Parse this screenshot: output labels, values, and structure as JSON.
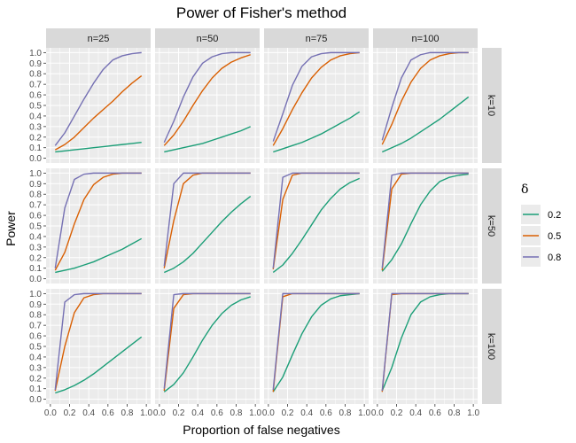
{
  "chart_data": {
    "type": "line",
    "title": "Power of Fisher's method",
    "xlabel": "Proportion of false negatives",
    "ylabel": "Power",
    "xlim": [
      0,
      1
    ],
    "ylim": [
      0,
      1
    ],
    "x_ticks": [
      "0.0",
      "0.2",
      "0.4",
      "0.6",
      "0.8",
      "1.0"
    ],
    "y_ticks": [
      "0.0",
      "0.1",
      "0.2",
      "0.3",
      "0.4",
      "0.5",
      "0.6",
      "0.7",
      "0.8",
      "0.9",
      "1.0"
    ],
    "grid": true,
    "facet_cols": [
      "n=25",
      "n=50",
      "n=75",
      "n=100"
    ],
    "facet_rows": [
      "k=10",
      "k=50",
      "k=100"
    ],
    "legend": {
      "title": "δ",
      "position": "right",
      "entries": [
        {
          "label": "0.2",
          "color": "#1b9e77"
        },
        {
          "label": "0.5",
          "color": "#d95f02"
        },
        {
          "label": "0.8",
          "color": "#7570b3"
        }
      ]
    },
    "x": [
      0.05,
      0.15,
      0.25,
      0.35,
      0.45,
      0.55,
      0.65,
      0.75,
      0.85,
      0.95
    ],
    "panels": [
      {
        "col": "n=25",
        "row": "k=10",
        "series": [
          {
            "name": "0.2",
            "values": [
              0.06,
              0.07,
              0.08,
              0.09,
              0.1,
              0.11,
              0.12,
              0.13,
              0.14,
              0.15
            ]
          },
          {
            "name": "0.5",
            "values": [
              0.08,
              0.13,
              0.2,
              0.29,
              0.38,
              0.46,
              0.54,
              0.63,
              0.71,
              0.78
            ]
          },
          {
            "name": "0.8",
            "values": [
              0.12,
              0.24,
              0.4,
              0.56,
              0.71,
              0.84,
              0.93,
              0.97,
              0.99,
              1.0
            ]
          }
        ]
      },
      {
        "col": "n=50",
        "row": "k=10",
        "series": [
          {
            "name": "0.2",
            "values": [
              0.06,
              0.08,
              0.1,
              0.12,
              0.14,
              0.17,
              0.2,
              0.23,
              0.26,
              0.3
            ]
          },
          {
            "name": "0.5",
            "values": [
              0.12,
              0.22,
              0.35,
              0.5,
              0.64,
              0.76,
              0.85,
              0.91,
              0.95,
              0.98
            ]
          },
          {
            "name": "0.8",
            "values": [
              0.15,
              0.35,
              0.58,
              0.77,
              0.9,
              0.96,
              0.99,
              1.0,
              1.0,
              1.0
            ]
          }
        ]
      },
      {
        "col": "n=75",
        "row": "k=10",
        "series": [
          {
            "name": "0.2",
            "values": [
              0.06,
              0.09,
              0.12,
              0.15,
              0.19,
              0.23,
              0.28,
              0.33,
              0.38,
              0.44
            ]
          },
          {
            "name": "0.5",
            "values": [
              0.12,
              0.28,
              0.46,
              0.62,
              0.76,
              0.86,
              0.93,
              0.97,
              0.99,
              1.0
            ]
          },
          {
            "name": "0.8",
            "values": [
              0.16,
              0.42,
              0.69,
              0.87,
              0.96,
              0.99,
              1.0,
              1.0,
              1.0,
              1.0
            ]
          }
        ]
      },
      {
        "col": "n=100",
        "row": "k=10",
        "series": [
          {
            "name": "0.2",
            "values": [
              0.06,
              0.1,
              0.14,
              0.19,
              0.25,
              0.31,
              0.37,
              0.44,
              0.51,
              0.58
            ]
          },
          {
            "name": "0.5",
            "values": [
              0.13,
              0.32,
              0.54,
              0.72,
              0.85,
              0.93,
              0.97,
              0.99,
              1.0,
              1.0
            ]
          },
          {
            "name": "0.8",
            "values": [
              0.17,
              0.48,
              0.76,
              0.93,
              0.98,
              1.0,
              1.0,
              1.0,
              1.0,
              1.0
            ]
          }
        ]
      },
      {
        "col": "n=25",
        "row": "k=50",
        "series": [
          {
            "name": "0.2",
            "values": [
              0.06,
              0.08,
              0.1,
              0.13,
              0.16,
              0.2,
              0.24,
              0.28,
              0.33,
              0.38
            ]
          },
          {
            "name": "0.5",
            "values": [
              0.08,
              0.25,
              0.52,
              0.75,
              0.89,
              0.96,
              0.99,
              1.0,
              1.0,
              1.0
            ]
          },
          {
            "name": "0.8",
            "values": [
              0.1,
              0.67,
              0.94,
              0.99,
              1.0,
              1.0,
              1.0,
              1.0,
              1.0,
              1.0
            ]
          }
        ]
      },
      {
        "col": "n=50",
        "row": "k=50",
        "series": [
          {
            "name": "0.2",
            "values": [
              0.06,
              0.1,
              0.16,
              0.24,
              0.34,
              0.44,
              0.54,
              0.63,
              0.71,
              0.78
            ]
          },
          {
            "name": "0.5",
            "values": [
              0.1,
              0.55,
              0.9,
              0.98,
              1.0,
              1.0,
              1.0,
              1.0,
              1.0,
              1.0
            ]
          },
          {
            "name": "0.8",
            "values": [
              0.12,
              0.9,
              1.0,
              1.0,
              1.0,
              1.0,
              1.0,
              1.0,
              1.0,
              1.0
            ]
          }
        ]
      },
      {
        "col": "n=75",
        "row": "k=50",
        "series": [
          {
            "name": "0.2",
            "values": [
              0.06,
              0.13,
              0.24,
              0.37,
              0.51,
              0.65,
              0.76,
              0.85,
              0.91,
              0.95
            ]
          },
          {
            "name": "0.5",
            "values": [
              0.09,
              0.75,
              0.98,
              1.0,
              1.0,
              1.0,
              1.0,
              1.0,
              1.0,
              1.0
            ]
          },
          {
            "name": "0.8",
            "values": [
              0.1,
              0.96,
              1.0,
              1.0,
              1.0,
              1.0,
              1.0,
              1.0,
              1.0,
              1.0
            ]
          }
        ]
      },
      {
        "col": "n=100",
        "row": "k=50",
        "series": [
          {
            "name": "0.2",
            "values": [
              0.07,
              0.18,
              0.33,
              0.52,
              0.7,
              0.83,
              0.92,
              0.96,
              0.98,
              0.99
            ]
          },
          {
            "name": "0.5",
            "values": [
              0.08,
              0.85,
              0.99,
              1.0,
              1.0,
              1.0,
              1.0,
              1.0,
              1.0,
              1.0
            ]
          },
          {
            "name": "0.8",
            "values": [
              0.1,
              0.98,
              1.0,
              1.0,
              1.0,
              1.0,
              1.0,
              1.0,
              1.0,
              1.0
            ]
          }
        ]
      },
      {
        "col": "n=25",
        "row": "k=100",
        "series": [
          {
            "name": "0.2",
            "values": [
              0.06,
              0.09,
              0.13,
              0.18,
              0.24,
              0.31,
              0.38,
              0.45,
              0.52,
              0.59
            ]
          },
          {
            "name": "0.5",
            "values": [
              0.08,
              0.5,
              0.82,
              0.96,
              0.99,
              1.0,
              1.0,
              1.0,
              1.0,
              1.0
            ]
          },
          {
            "name": "0.8",
            "values": [
              0.09,
              0.92,
              0.99,
              1.0,
              1.0,
              1.0,
              1.0,
              1.0,
              1.0,
              1.0
            ]
          }
        ]
      },
      {
        "col": "n=50",
        "row": "k=100",
        "series": [
          {
            "name": "0.2",
            "values": [
              0.07,
              0.14,
              0.25,
              0.4,
              0.56,
              0.7,
              0.81,
              0.89,
              0.94,
              0.97
            ]
          },
          {
            "name": "0.5",
            "values": [
              0.08,
              0.86,
              0.99,
              1.0,
              1.0,
              1.0,
              1.0,
              1.0,
              1.0,
              1.0
            ]
          },
          {
            "name": "0.8",
            "values": [
              0.1,
              0.99,
              1.0,
              1.0,
              1.0,
              1.0,
              1.0,
              1.0,
              1.0,
              1.0
            ]
          }
        ]
      },
      {
        "col": "n=75",
        "row": "k=100",
        "series": [
          {
            "name": "0.2",
            "values": [
              0.07,
              0.21,
              0.42,
              0.62,
              0.78,
              0.89,
              0.95,
              0.98,
              0.99,
              1.0
            ]
          },
          {
            "name": "0.5",
            "values": [
              0.07,
              0.97,
              1.0,
              1.0,
              1.0,
              1.0,
              1.0,
              1.0,
              1.0,
              1.0
            ]
          },
          {
            "name": "0.8",
            "values": [
              0.09,
              1.0,
              1.0,
              1.0,
              1.0,
              1.0,
              1.0,
              1.0,
              1.0,
              1.0
            ]
          }
        ]
      },
      {
        "col": "n=100",
        "row": "k=100",
        "series": [
          {
            "name": "0.2",
            "values": [
              0.08,
              0.3,
              0.58,
              0.8,
              0.92,
              0.97,
              0.99,
              1.0,
              1.0,
              1.0
            ]
          },
          {
            "name": "0.5",
            "values": [
              0.07,
              0.99,
              1.0,
              1.0,
              1.0,
              1.0,
              1.0,
              1.0,
              1.0,
              1.0
            ]
          },
          {
            "name": "0.8",
            "values": [
              0.08,
              1.0,
              1.0,
              1.0,
              1.0,
              1.0,
              1.0,
              1.0,
              1.0,
              1.0
            ]
          }
        ]
      }
    ]
  }
}
